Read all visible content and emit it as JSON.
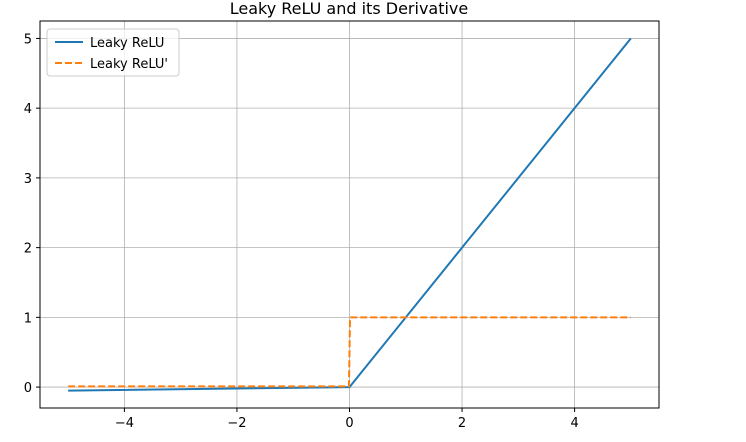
{
  "chart_data": {
    "type": "line",
    "title": "Leaky ReLU and its Derivative",
    "xlabel": "",
    "ylabel": "",
    "xlim": [
      -5.5,
      5.5
    ],
    "ylim": [
      -0.3,
      5.25
    ],
    "xticks": [
      -4,
      -2,
      0,
      2,
      4
    ],
    "xtick_labels": [
      "−4",
      "−2",
      "0",
      "2",
      "4"
    ],
    "yticks": [
      0,
      1,
      2,
      3,
      4,
      5
    ],
    "ytick_labels": [
      "0",
      "1",
      "2",
      "3",
      "4",
      "5"
    ],
    "grid": true,
    "legend_position": "top-left",
    "series": [
      {
        "name": "Leaky ReLU",
        "color": "#1f77b4",
        "style": "solid",
        "x": [
          -5,
          0,
          5
        ],
        "y": [
          -0.05,
          0,
          5
        ]
      },
      {
        "name": "Leaky ReLU'",
        "color": "#ff7f0e",
        "style": "dashed",
        "x": [
          -5,
          -0.01,
          0.01,
          5
        ],
        "y": [
          0.01,
          0.01,
          1,
          1
        ]
      }
    ]
  }
}
